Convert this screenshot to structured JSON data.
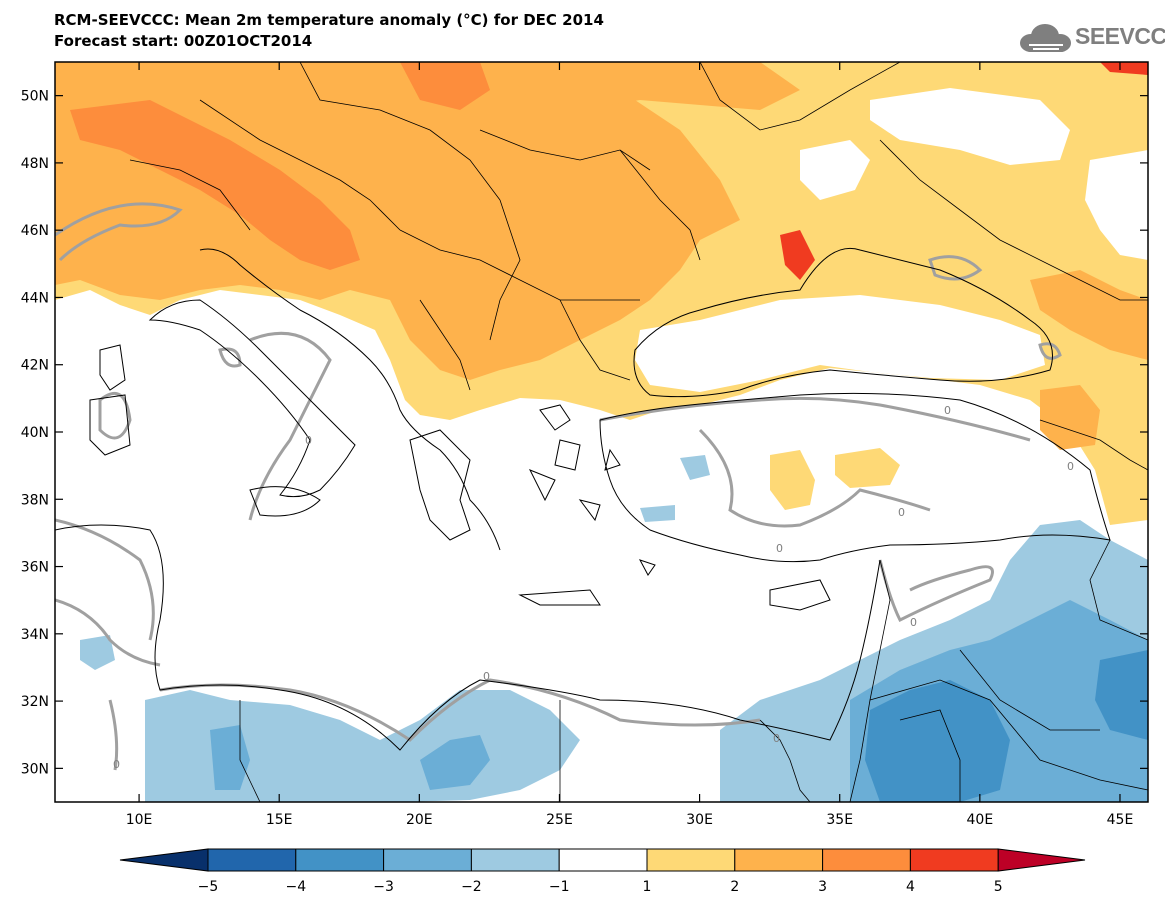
{
  "header": {
    "title_line1": "RCM-SEEVCCC: Mean 2m temperature anomaly (°C) for DEC 2014",
    "title_line2": "Forecast start: 00Z01OCT2014"
  },
  "logo": {
    "text": "SEEVCCC",
    "icon": "cloud-icon",
    "color": "#7f7f7f"
  },
  "map": {
    "lon_range": [
      7,
      46
    ],
    "lat_range": [
      29,
      51
    ],
    "lon_ticks": [
      "10E",
      "15E",
      "20E",
      "25E",
      "30E",
      "35E",
      "40E",
      "45E"
    ],
    "lat_ticks": [
      "50N",
      "48N",
      "46N",
      "44N",
      "42N",
      "40N",
      "38N",
      "36N",
      "34N",
      "32N",
      "30N"
    ],
    "contour_label": "0"
  },
  "colorbar": {
    "labels": [
      "−5",
      "−4",
      "−3",
      "−2",
      "−1",
      "1",
      "2",
      "3",
      "4",
      "5"
    ],
    "colors": [
      "#08306b",
      "#2166ac",
      "#4292c6",
      "#6baed6",
      "#9ecae1",
      "#ffffff",
      "#fed976",
      "#feb24c",
      "#fd8d3c",
      "#f03b20",
      "#bd0026"
    ]
  }
}
